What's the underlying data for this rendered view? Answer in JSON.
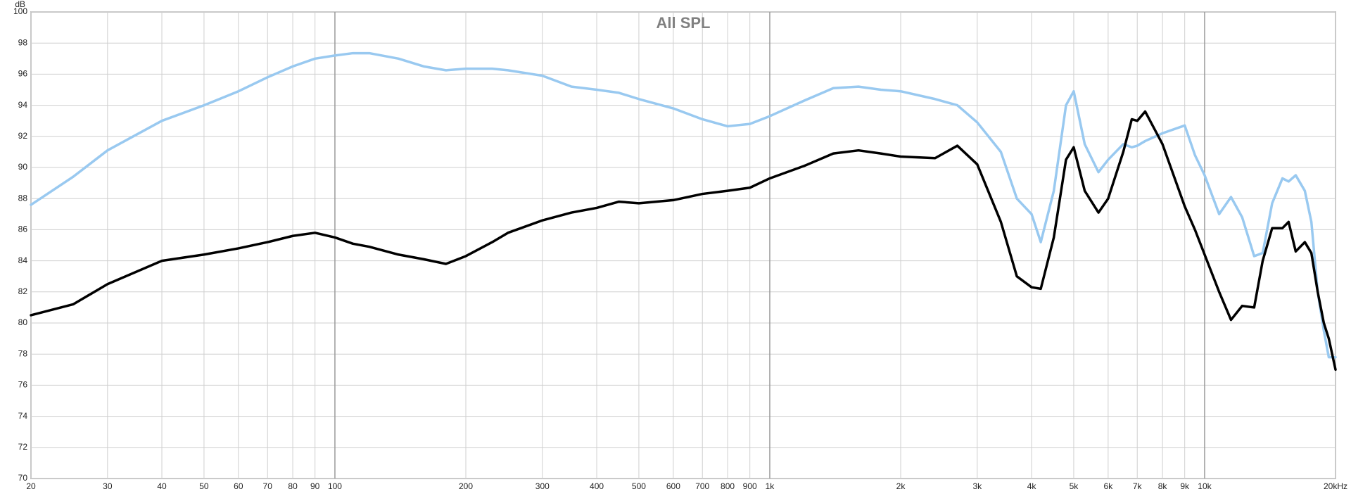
{
  "chart_data": {
    "type": "line",
    "title": "All SPL",
    "y_label": "dB",
    "x": [
      20,
      25,
      30,
      40,
      50,
      60,
      70,
      80,
      90,
      100,
      110,
      120,
      140,
      160,
      180,
      200,
      230,
      250,
      300,
      350,
      400,
      450,
      500,
      600,
      700,
      800,
      900,
      1000,
      1200,
      1400,
      1600,
      1800,
      2000,
      2400,
      2700,
      3000,
      3400,
      3700,
      4000,
      4200,
      4500,
      4800,
      5000,
      5300,
      5700,
      6000,
      6500,
      6800,
      7000,
      7300,
      8000,
      9000,
      9500,
      10000,
      10800,
      11500,
      12200,
      13000,
      13600,
      14300,
      15100,
      15600,
      16200,
      17000,
      17600,
      18200,
      18800,
      19300,
      20000
    ],
    "series": [
      {
        "color": "#99c9f0",
        "values": [
          87.6,
          89.4,
          91.1,
          93.0,
          94.0,
          94.9,
          95.8,
          96.5,
          97.0,
          97.2,
          97.35,
          97.35,
          97.0,
          96.5,
          96.25,
          96.35,
          96.35,
          96.25,
          95.9,
          95.2,
          95.0,
          94.8,
          94.4,
          93.8,
          93.1,
          92.65,
          92.8,
          93.3,
          94.3,
          95.1,
          95.2,
          95.0,
          94.9,
          94.4,
          94.0,
          92.9,
          91.0,
          88.0,
          87.0,
          85.2,
          88.5,
          94.0,
          94.9,
          91.5,
          89.7,
          90.5,
          91.5,
          91.3,
          91.4,
          91.7,
          92.2,
          92.7,
          90.8,
          89.5,
          87.0,
          88.1,
          86.8,
          84.3,
          84.5,
          87.7,
          89.3,
          89.1,
          89.5,
          88.5,
          86.5,
          82.0,
          79.5,
          77.8,
          77.8
        ]
      },
      {
        "color": "#000000",
        "values": [
          80.5,
          81.2,
          82.5,
          84.0,
          84.4,
          84.8,
          85.2,
          85.6,
          85.8,
          85.5,
          85.1,
          84.9,
          84.4,
          84.1,
          83.8,
          84.3,
          85.2,
          85.8,
          86.6,
          87.1,
          87.4,
          87.8,
          87.7,
          87.9,
          88.3,
          88.5,
          88.7,
          89.3,
          90.1,
          90.9,
          91.1,
          90.9,
          90.7,
          90.6,
          91.4,
          90.2,
          86.5,
          83.0,
          82.3,
          82.2,
          85.5,
          90.5,
          91.3,
          88.5,
          87.1,
          88.0,
          91.0,
          93.1,
          93.0,
          93.6,
          91.5,
          87.5,
          86.0,
          84.4,
          82.0,
          80.2,
          81.1,
          81.0,
          84.0,
          86.1,
          86.1,
          86.5,
          84.6,
          85.2,
          84.5,
          82.0,
          80.0,
          79.0,
          77.0
        ]
      }
    ],
    "xscale": "log",
    "xlim": [
      20,
      20000
    ],
    "ylim": [
      70,
      100
    ],
    "grid": true,
    "xticks": [
      20,
      30,
      40,
      50,
      60,
      70,
      80,
      90,
      100,
      200,
      300,
      400,
      500,
      600,
      700,
      800,
      900,
      {
        "value": 1000,
        "label": "1k"
      },
      {
        "value": 2000,
        "label": "2k"
      },
      {
        "value": 3000,
        "label": "3k"
      },
      {
        "value": 4000,
        "label": "4k"
      },
      {
        "value": 5000,
        "label": "5k"
      },
      {
        "value": 6000,
        "label": "6k"
      },
      {
        "value": 7000,
        "label": "7k"
      },
      {
        "value": 8000,
        "label": "8k"
      },
      {
        "value": 9000,
        "label": "9k"
      },
      {
        "value": 10000,
        "label": "10k"
      },
      {
        "value": 20000,
        "label": "20kHz"
      }
    ],
    "yticks": [
      70,
      72,
      74,
      76,
      78,
      80,
      82,
      84,
      86,
      88,
      90,
      92,
      94,
      96,
      98,
      100
    ]
  }
}
